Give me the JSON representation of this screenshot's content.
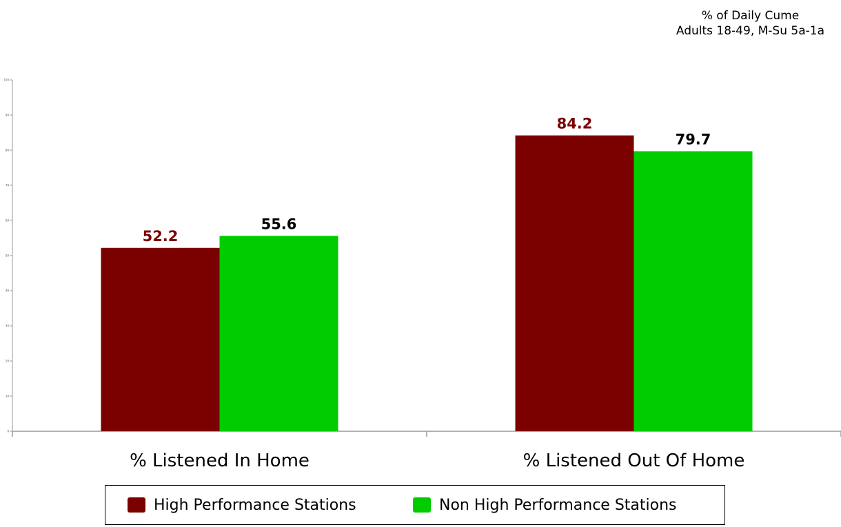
{
  "colors": {
    "high": "#7b0000",
    "non_high": "#00cc00",
    "high_label": "#7b0000",
    "non_high_label": "#000000"
  },
  "chart_data": {
    "type": "bar",
    "subtitle_lines": [
      "% of Daily Cume",
      "Adults 18-49, M-Su 5a-1a"
    ],
    "categories": [
      "% Listened In Home",
      "% Listened Out Of Home"
    ],
    "series": [
      {
        "name": "High Performance Stations",
        "values": [
          52.2,
          84.2
        ]
      },
      {
        "name": "Non High Performance Stations",
        "values": [
          55.6,
          79.7
        ]
      }
    ],
    "ylim": [
      0,
      100
    ],
    "yticks": [
      "0",
      "10",
      "20",
      "30",
      "40",
      "50",
      "60",
      "70",
      "80",
      "90",
      "100"
    ],
    "grid": false,
    "legend_position": "bottom"
  }
}
